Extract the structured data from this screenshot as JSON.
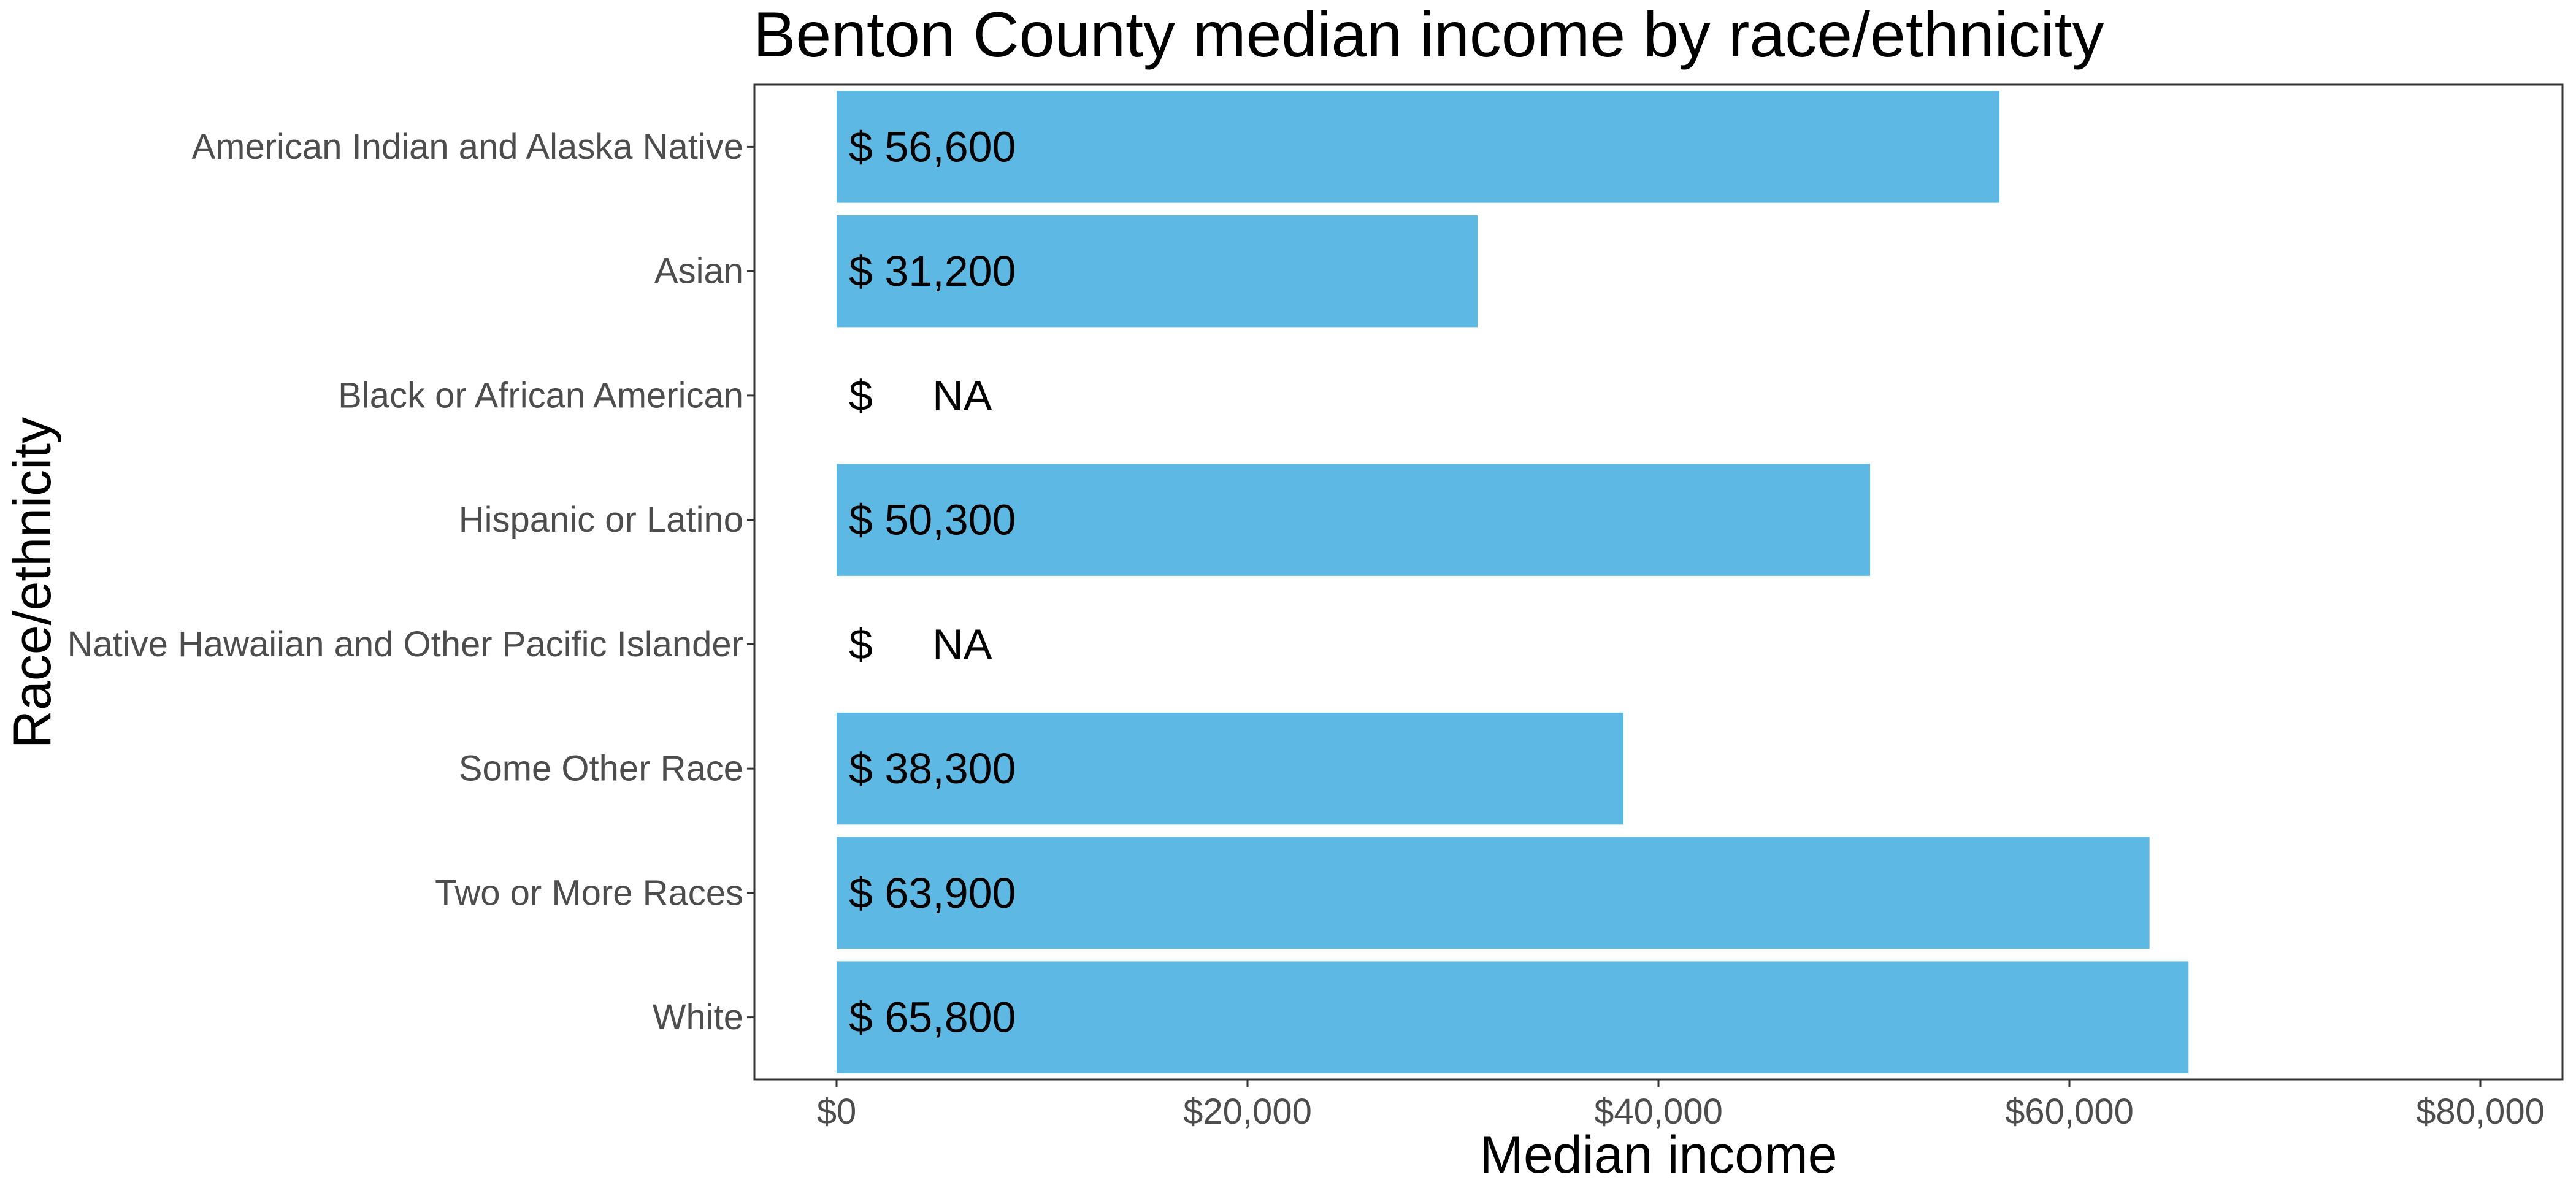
{
  "chart_data": {
    "type": "bar",
    "orientation": "horizontal",
    "title": "Benton County median income by race/ethnicity",
    "xlabel": "Median income",
    "ylabel": "Race/ethnicity",
    "categories": [
      "American Indian and Alaska Native",
      "Asian",
      "Black or African American",
      "Hispanic or Latino",
      "Native Hawaiian and Other Pacific Islander",
      "Some Other Race",
      "Two or More Races",
      "White"
    ],
    "values": [
      56600,
      31200,
      null,
      50300,
      null,
      38300,
      63900,
      65800
    ],
    "data_labels": [
      "$ 56,600",
      "$ 31,200",
      "$     NA",
      "$ 50,300",
      "$     NA",
      "$ 38,300",
      "$ 63,900",
      "$ 65,800"
    ],
    "xlim": [
      -4000,
      84000
    ],
    "x_ticks": [
      0,
      20000,
      40000,
      60000,
      80000
    ],
    "x_tick_labels": [
      "$0",
      "$20,000",
      "$40,000",
      "$60,000",
      "$80,000"
    ],
    "bar_color": "#5db9e3",
    "grid": false,
    "legend": "none"
  }
}
